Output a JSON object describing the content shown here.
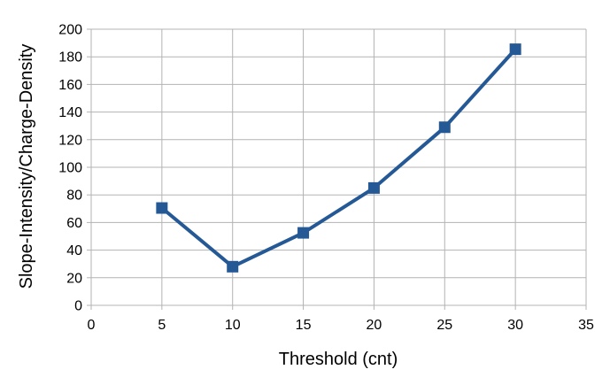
{
  "chart_data": {
    "type": "line",
    "title": "",
    "xlabel": "Threshold (cnt)",
    "ylabel": "Slope-Intensity/Charge-Density",
    "xlim": [
      0,
      35
    ],
    "ylim": [
      0,
      200
    ],
    "xticks": [
      0,
      5,
      10,
      15,
      20,
      25,
      30,
      35
    ],
    "yticks": [
      0,
      20,
      40,
      60,
      80,
      100,
      120,
      140,
      160,
      180,
      200
    ],
    "grid": true,
    "legend": "none",
    "series": [
      {
        "x": [
          5,
          10,
          15,
          20,
          25,
          30
        ],
        "y": [
          70.5,
          28,
          52.5,
          85,
          129,
          185.5
        ],
        "color": "#255996",
        "marker": "square"
      }
    ]
  }
}
